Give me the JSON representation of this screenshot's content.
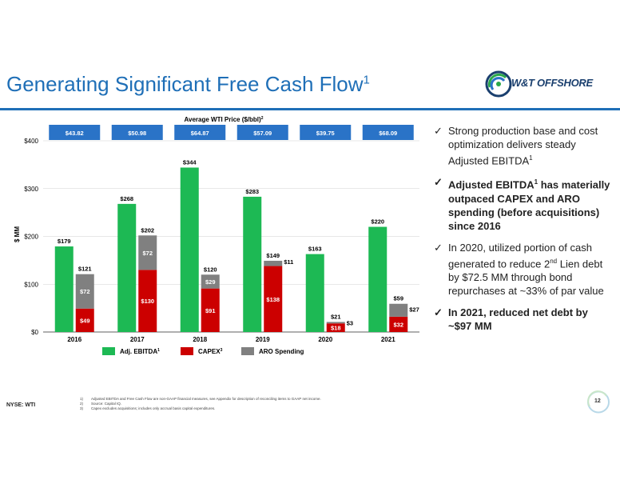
{
  "slide": {
    "title": "Generating Significant Free Cash Flow",
    "title_sup": "1",
    "logo_text": "W&T OFFSHORE",
    "page_number": "12",
    "ticker": "NYSE: WTI"
  },
  "bullets": [
    {
      "text": "Strong production base and cost optimization delivers steady Adjusted EBITDA",
      "sup": "1",
      "bold": false
    },
    {
      "text": "Adjusted EBITDA",
      "sup": "1",
      "rest": " has materially outpaced CAPEX and ARO spending (before acquisitions) since 2016",
      "bold": true
    },
    {
      "text": "In 2020, utilized portion of cash generated to reduce 2",
      "sup": "nd",
      "rest": " Lien debt by $72.5 MM through bond repurchases at ~33% of par value",
      "bold": false
    },
    {
      "text": "In 2021, reduced net debt by ~$97 MM",
      "sup": "",
      "bold": true
    }
  ],
  "footnotes": [
    {
      "n": "1)",
      "text": "Adjusted EBITDA and Free Cash Flow are non-GAAP financial measures, see Appendix for description of reconciling items to GAAP net income."
    },
    {
      "n": "2)",
      "text": "Source: Capital IQ."
    },
    {
      "n": "3)",
      "text": "Capex excludes acquisitions; includes only accrual basis capital expenditures."
    }
  ],
  "chart_data": {
    "type": "bar",
    "categories": [
      "2016",
      "2017",
      "2018",
      "2019",
      "2020",
      "2021"
    ],
    "wti_header": "Average WTI Price ($/bbl)",
    "wti_header_sup": "2",
    "wti_prices": [
      "$43.82",
      "$50.98",
      "$64.87",
      "$57.09",
      "$39.75",
      "$68.09"
    ],
    "ylabel": "$ MM",
    "ylim": [
      0,
      400
    ],
    "yticks": [
      0,
      100,
      200,
      300,
      400
    ],
    "ytick_labels": [
      "$0",
      "$100",
      "$200",
      "$300",
      "$400"
    ],
    "grid": true,
    "legend_position": "bottom",
    "series": [
      {
        "name": "Adj. EBITDA",
        "name_sup": "1",
        "color": "#1db954",
        "values": [
          179,
          268,
          344,
          283,
          163,
          220
        ],
        "labels": [
          "$179",
          "$268",
          "$344",
          "$283",
          "$163",
          "$220"
        ]
      },
      {
        "name": "CAPEX",
        "name_sup": "3",
        "color": "#cc0000",
        "values": [
          49,
          130,
          91,
          138,
          18,
          32
        ],
        "labels": [
          "$49",
          "$130",
          "$91",
          "$138",
          "$18",
          "$32"
        ]
      },
      {
        "name": "ARO Spending",
        "name_sup": "",
        "color": "#808080",
        "values": [
          72,
          72,
          29,
          11,
          3,
          27
        ],
        "labels": [
          "$72",
          "$72",
          "$29",
          "$11",
          "$3",
          "$27"
        ]
      }
    ],
    "stack_totals": [
      "$121",
      "$202",
      "$120",
      "$149",
      "$21",
      "$59"
    ]
  },
  "colors": {
    "title": "#1f6fb7",
    "wti_box": "#2a73c7",
    "ebitda": "#1db954",
    "capex": "#cc0000",
    "aro": "#808080"
  }
}
